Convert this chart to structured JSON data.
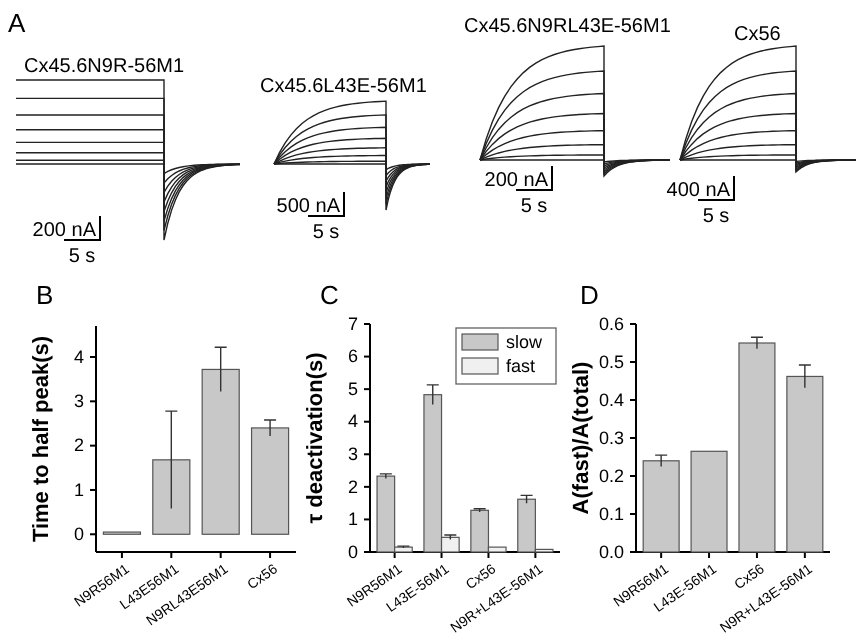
{
  "chart_data": [
    {
      "type": "other",
      "title": "Cx45.6N9R-56M1",
      "annotations": [
        "A",
        "200 nA",
        "5 s"
      ]
    },
    {
      "type": "other",
      "title": "Cx45.6L43E-56M1",
      "annotations": [
        "500 nA",
        "5 s"
      ]
    },
    {
      "type": "other",
      "title": "Cx45.6N9RL43E-56M1",
      "annotations": [
        "200 nA",
        "5 s"
      ]
    },
    {
      "type": "other",
      "title": "Cx56",
      "annotations": [
        "400 nA",
        "5 s"
      ]
    },
    {
      "type": "bar",
      "categories": [
        "N9R56M1",
        "L43E56M1",
        "N9RL43E56M1",
        "Cx56"
      ],
      "values": [
        0.05,
        1.68,
        3.72,
        2.4
      ],
      "errors": [
        null,
        1.1,
        0.5,
        0.18
      ],
      "color": "#c8c8c8",
      "ylim": [
        -0.4,
        4.7
      ],
      "yticks": [
        0,
        1,
        2,
        3,
        4
      ],
      "ylabel": "Time to half peak(s)",
      "annotations": [
        "B"
      ]
    },
    {
      "type": "bar",
      "categories": [
        "N9R56M1",
        "L43E-56M1",
        "Cx56",
        "N9R+L43E-56M1"
      ],
      "series": [
        {
          "name": "slow",
          "color": "#c8c8c8",
          "values": [
            2.33,
            4.83,
            1.28,
            1.62
          ],
          "errors": [
            0.07,
            0.3,
            0.05,
            0.12
          ]
        },
        {
          "name": "fast",
          "color": "#f0f0f0",
          "values": [
            0.15,
            0.45,
            0.15,
            0.08
          ],
          "errors": [
            0.03,
            0.07,
            null,
            null
          ]
        }
      ],
      "ylim": [
        0,
        7
      ],
      "yticks": [
        0,
        1,
        2,
        3,
        4,
        5,
        6,
        7
      ],
      "ylabel": "τ deactivation(s)",
      "legend": "top right",
      "annotations": [
        "C"
      ]
    },
    {
      "type": "bar",
      "categories": [
        "N9R56M1",
        "L43E-56M1",
        "Cx56",
        "N9R+L43E-56M1"
      ],
      "values": [
        0.24,
        0.265,
        0.55,
        0.462
      ],
      "errors": [
        0.015,
        null,
        0.015,
        0.03
      ],
      "color": "#c8c8c8",
      "ylim": [
        0,
        0.6
      ],
      "yticks": [
        {
          "value": 0,
          "label": "0.0"
        },
        {
          "value": 0.1,
          "label": "0.1"
        },
        {
          "value": 0.2,
          "label": "0.2"
        },
        {
          "value": 0.3,
          "label": "0.3"
        },
        {
          "value": 0.4,
          "label": "0.4"
        },
        {
          "value": 0.5,
          "label": "0.5"
        },
        {
          "value": 0.6,
          "label": "0.6"
        }
      ],
      "ylabel": "A(fast)/A(total)",
      "annotations": [
        "D"
      ]
    }
  ]
}
